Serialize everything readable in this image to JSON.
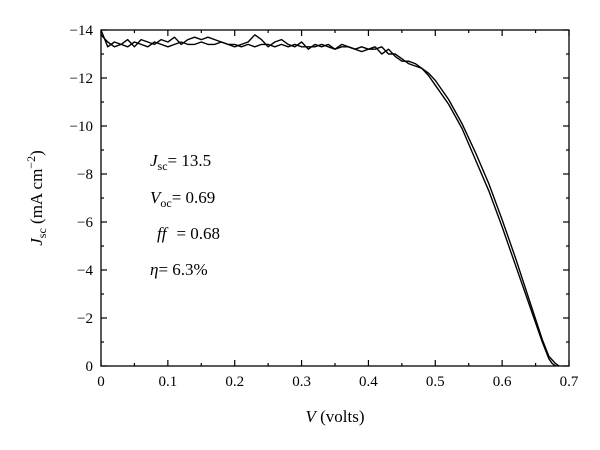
{
  "chart_data": {
    "type": "line",
    "xlabel": {
      "symbol": "V",
      "unit": " (volts)"
    },
    "ylabel": {
      "symbol": "J",
      "subscript": "sc",
      "unit": " (mA cm",
      "superscript": "−2",
      "close": ")"
    },
    "xlim": [
      0,
      0.7
    ],
    "ylim": [
      0,
      -14
    ],
    "y_axis_inverted": true,
    "grid": false,
    "x_ticks": [
      {
        "value": 0,
        "label": "0"
      },
      {
        "value": 0.1,
        "label": "0.1"
      },
      {
        "value": 0.2,
        "label": "0.2"
      },
      {
        "value": 0.3,
        "label": "0.3"
      },
      {
        "value": 0.4,
        "label": "0.4"
      },
      {
        "value": 0.5,
        "label": "0.5"
      },
      {
        "value": 0.6,
        "label": "0.6"
      },
      {
        "value": 0.7,
        "label": "0.7"
      }
    ],
    "y_ticks": [
      {
        "value": 0,
        "label": "0"
      },
      {
        "value": -2,
        "label": "−2"
      },
      {
        "value": -4,
        "label": "−4"
      },
      {
        "value": -6,
        "label": "−6"
      },
      {
        "value": -8,
        "label": "−8"
      },
      {
        "value": -10,
        "label": "−10"
      },
      {
        "value": -12,
        "label": "−12"
      },
      {
        "value": -14,
        "label": "−14"
      }
    ],
    "annotations": [
      {
        "symbol": "J",
        "sub": "sc",
        "text": "= 13.5"
      },
      {
        "symbol": "V",
        "sub": "oc",
        "text": "= 0.69"
      },
      {
        "symbol": "ff",
        "sub": "",
        "text": "= 0.68"
      },
      {
        "symbol": "η",
        "sub": "",
        "text": "= 6.3%"
      }
    ],
    "series": [
      {
        "x": [
          0,
          0.01,
          0.02,
          0.03,
          0.04,
          0.05,
          0.06,
          0.07,
          0.08,
          0.09,
          0.1,
          0.11,
          0.12,
          0.13,
          0.14,
          0.15,
          0.16,
          0.17,
          0.18,
          0.19,
          0.2,
          0.21,
          0.22,
          0.23,
          0.24,
          0.25,
          0.26,
          0.27,
          0.28,
          0.29,
          0.3,
          0.31,
          0.32,
          0.33,
          0.34,
          0.35,
          0.36,
          0.37,
          0.38,
          0.39,
          0.4,
          0.41,
          0.42,
          0.43,
          0.44,
          0.45,
          0.46,
          0.47,
          0.48,
          0.49,
          0.5,
          0.52,
          0.54,
          0.56,
          0.58,
          0.6,
          0.62,
          0.64,
          0.66,
          0.67,
          0.68,
          0.685
        ],
        "y": [
          -14.0,
          -13.3,
          -13.5,
          -13.4,
          -13.6,
          -13.3,
          -13.6,
          -13.5,
          -13.4,
          -13.6,
          -13.5,
          -13.7,
          -13.4,
          -13.6,
          -13.7,
          -13.6,
          -13.7,
          -13.6,
          -13.5,
          -13.4,
          -13.3,
          -13.4,
          -13.5,
          -13.8,
          -13.6,
          -13.3,
          -13.5,
          -13.6,
          -13.4,
          -13.3,
          -13.5,
          -13.2,
          -13.4,
          -13.3,
          -13.4,
          -13.2,
          -13.4,
          -13.3,
          -13.2,
          -13.3,
          -13.2,
          -13.3,
          -13.0,
          -13.2,
          -12.9,
          -12.7,
          -12.7,
          -12.6,
          -12.4,
          -12.2,
          -11.9,
          -11.1,
          -10.1,
          -8.9,
          -7.6,
          -6.1,
          -4.5,
          -2.8,
          -1.1,
          -0.4,
          -0.1,
          0
        ]
      },
      {
        "x": [
          0,
          0.01,
          0.02,
          0.03,
          0.04,
          0.05,
          0.06,
          0.07,
          0.08,
          0.09,
          0.1,
          0.11,
          0.12,
          0.13,
          0.14,
          0.15,
          0.16,
          0.17,
          0.18,
          0.19,
          0.2,
          0.21,
          0.22,
          0.23,
          0.24,
          0.25,
          0.26,
          0.27,
          0.28,
          0.29,
          0.3,
          0.31,
          0.32,
          0.33,
          0.34,
          0.35,
          0.36,
          0.37,
          0.38,
          0.39,
          0.4,
          0.41,
          0.42,
          0.43,
          0.44,
          0.45,
          0.46,
          0.47,
          0.48,
          0.49,
          0.5,
          0.52,
          0.54,
          0.56,
          0.58,
          0.6,
          0.62,
          0.64,
          0.66,
          0.67,
          0.675,
          0.68
        ],
        "y": [
          -13.8,
          -13.5,
          -13.3,
          -13.4,
          -13.3,
          -13.5,
          -13.4,
          -13.3,
          -13.5,
          -13.4,
          -13.3,
          -13.4,
          -13.5,
          -13.4,
          -13.4,
          -13.5,
          -13.4,
          -13.4,
          -13.5,
          -13.4,
          -13.4,
          -13.3,
          -13.4,
          -13.3,
          -13.4,
          -13.4,
          -13.3,
          -13.4,
          -13.3,
          -13.4,
          -13.3,
          -13.3,
          -13.3,
          -13.4,
          -13.3,
          -13.2,
          -13.3,
          -13.3,
          -13.2,
          -13.1,
          -13.2,
          -13.2,
          -13.3,
          -13.0,
          -13.0,
          -12.8,
          -12.6,
          -12.5,
          -12.4,
          -12.1,
          -11.7,
          -10.9,
          -9.9,
          -8.6,
          -7.3,
          -5.8,
          -4.2,
          -2.6,
          -1.0,
          -0.3,
          -0.1,
          0
        ]
      }
    ]
  }
}
